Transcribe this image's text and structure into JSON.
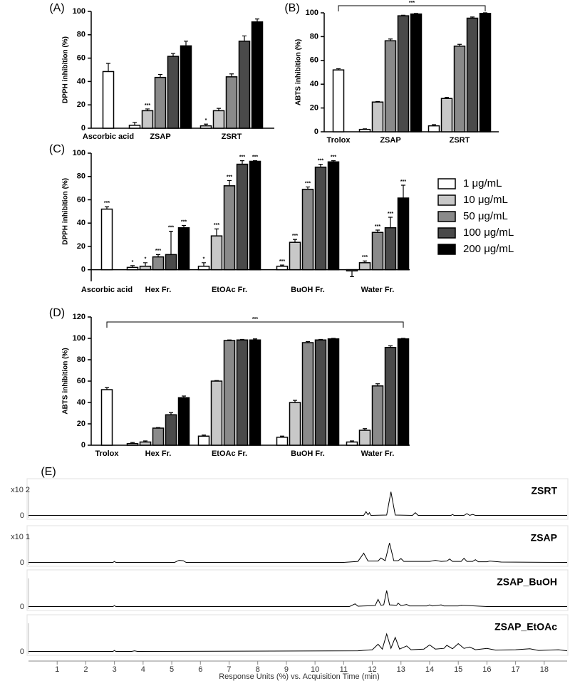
{
  "chart_data": [
    {
      "type": "bar",
      "title": "(A)",
      "y_label": "DPPH inhibition (%)",
      "categories": [
        "Ascorbic acid",
        "ZSAP",
        "ZSRT"
      ],
      "ylim": [
        0,
        100
      ],
      "yticks": [
        0,
        20,
        40,
        60,
        80,
        100
      ],
      "series": [
        {
          "color": "#ffffff",
          "values": [
            48.5,
            2.5,
            2
          ],
          "errors": [
            7,
            2.5,
            1.5
          ],
          "stars": [
            null,
            null,
            "*"
          ]
        },
        {
          "color": "#c8c8c8",
          "values": [
            null,
            15,
            15
          ],
          "errors": [
            null,
            1.5,
            2
          ],
          "stars": [
            null,
            "***",
            null
          ]
        },
        {
          "color": "#8a8a8a",
          "values": [
            null,
            43.5,
            44
          ],
          "errors": [
            null,
            2.5,
            2.5
          ]
        },
        {
          "color": "#4a4a4a",
          "values": [
            null,
            61.5,
            74.5
          ],
          "errors": [
            null,
            2.5,
            4.5
          ]
        },
        {
          "color": "#000000",
          "values": [
            null,
            70.5,
            91
          ],
          "errors": [
            null,
            4,
            2.5
          ]
        }
      ]
    },
    {
      "type": "bar",
      "title": "(B)",
      "y_label": "ABTS inhibition (%)",
      "categories": [
        "Trolox",
        "ZSAP",
        "ZSRT"
      ],
      "ylim": [
        0,
        100
      ],
      "yticks": [
        0,
        20,
        40,
        60,
        80,
        100
      ],
      "bracket": "***",
      "series": [
        {
          "color": "#ffffff",
          "values": [
            52,
            2,
            5
          ],
          "errors": [
            1,
            0.5,
            1
          ]
        },
        {
          "color": "#c8c8c8",
          "values": [
            null,
            25,
            28
          ],
          "errors": [
            null,
            0.5,
            1
          ]
        },
        {
          "color": "#8a8a8a",
          "values": [
            null,
            76.5,
            72
          ],
          "errors": [
            null,
            1.5,
            1.5
          ]
        },
        {
          "color": "#4a4a4a",
          "values": [
            null,
            97.5,
            95.5
          ],
          "errors": [
            null,
            0.5,
            1
          ]
        },
        {
          "color": "#000000",
          "values": [
            null,
            99,
            99.5
          ],
          "errors": [
            null,
            0.5,
            0.5
          ]
        }
      ]
    },
    {
      "type": "bar",
      "title": "(C)",
      "y_label": "DPPH inhibition (%)",
      "categories": [
        "Ascorbic acid",
        "Hex Fr.",
        "EtOAc Fr.",
        "BuOH Fr.",
        "Water Fr."
      ],
      "ylim": [
        -10,
        100
      ],
      "yticks": [
        0,
        20,
        40,
        60,
        80,
        100
      ],
      "legend": true,
      "series": [
        {
          "name": "1 μg/mL",
          "color": "#ffffff",
          "values": [
            52,
            2,
            3,
            3,
            -1
          ],
          "errors": [
            2,
            1.5,
            3,
            1,
            5
          ],
          "stars": [
            "***",
            "*",
            "*",
            "***",
            null
          ]
        },
        {
          "name": "10 μg/mL",
          "color": "#c8c8c8",
          "values": [
            null,
            3,
            29,
            23.5,
            6
          ],
          "errors": [
            null,
            3,
            6,
            2.5,
            1.5
          ],
          "stars": [
            null,
            "*",
            "***",
            "***",
            "***"
          ]
        },
        {
          "name": "50 μg/mL",
          "color": "#8a8a8a",
          "values": [
            null,
            11,
            72,
            69,
            32
          ],
          "errors": [
            null,
            2,
            4.5,
            2,
            2
          ],
          "stars": [
            null,
            "***",
            "***",
            "***",
            "***"
          ]
        },
        {
          "name": "100 μg/mL",
          "color": "#4a4a4a",
          "values": [
            null,
            13,
            90.5,
            88,
            36
          ],
          "errors": [
            null,
            20,
            3,
            2.5,
            9
          ],
          "stars": [
            null,
            "***",
            "***",
            "***",
            "***"
          ]
        },
        {
          "name": "200 μg/mL",
          "color": "#000000",
          "values": [
            null,
            36,
            93,
            92.5,
            61.5
          ],
          "errors": [
            null,
            2,
            0.5,
            1,
            11
          ],
          "stars": [
            null,
            "***",
            "***",
            "***",
            "***"
          ]
        }
      ]
    },
    {
      "type": "bar",
      "title": "(D)",
      "y_label": "ABTS inhibition (%)",
      "categories": [
        "Trolox",
        "Hex Fr.",
        "EtOAc Fr.",
        "BuOH Fr.",
        "Water Fr."
      ],
      "ylim": [
        0,
        120
      ],
      "yticks": [
        0,
        20,
        40,
        60,
        80,
        100,
        120
      ],
      "bracket": "***",
      "series": [
        {
          "color": "#ffffff",
          "values": [
            52,
            1.5,
            8.5,
            7.5,
            3
          ],
          "errors": [
            2,
            1,
            1,
            1,
            1
          ]
        },
        {
          "color": "#c8c8c8",
          "values": [
            null,
            3,
            60,
            40,
            14
          ],
          "errors": [
            null,
            1,
            0.5,
            2,
            1.5
          ]
        },
        {
          "color": "#8a8a8a",
          "values": [
            null,
            16,
            98,
            96,
            55.5
          ],
          "errors": [
            null,
            0.5,
            0.5,
            1,
            2
          ]
        },
        {
          "color": "#4a4a4a",
          "values": [
            null,
            28.5,
            98.5,
            98.5,
            91.5
          ],
          "errors": [
            null,
            2,
            0.5,
            0.5,
            1.5
          ]
        },
        {
          "color": "#000000",
          "values": [
            null,
            44.5,
            98.5,
            99.5,
            99.5
          ],
          "errors": [
            null,
            1.5,
            1,
            0.5,
            0.5
          ]
        }
      ]
    },
    {
      "type": "chromatogram",
      "title": "(E)",
      "x_label": "Response Units (%) vs. Acquisition Time (min)",
      "xlim": [
        0,
        18.8
      ],
      "xticks": [
        1,
        2,
        3,
        4,
        5,
        6,
        7,
        8,
        9,
        10,
        11,
        12,
        13,
        14,
        15,
        16,
        17,
        18
      ],
      "ylim": [
        0,
        100
      ],
      "yticks": [
        0
      ],
      "series": [
        {
          "name": "ZSRT",
          "scale_label": "x10 2",
          "color": "#000000",
          "x": [
            0,
            11.7,
            11.78,
            11.85,
            11.9,
            11.95,
            12.5,
            12.65,
            12.8,
            13.4,
            13.5,
            13.6,
            14.75,
            14.8,
            14.85,
            15.2,
            15.3,
            15.4,
            15.5,
            15.6,
            18.8
          ],
          "values": [
            1,
            1,
            12,
            3,
            9,
            1,
            2,
            70,
            2,
            1,
            9,
            1,
            1,
            4,
            1,
            1,
            6,
            1,
            4,
            1,
            1
          ]
        },
        {
          "name": "ZSAP",
          "scale_label": "x10 1",
          "color": "#000000",
          "x": [
            0,
            2.95,
            3.0,
            3.05,
            5.1,
            5.25,
            5.4,
            5.5,
            11.0,
            11.5,
            11.7,
            11.85,
            12.2,
            12.3,
            12.45,
            12.6,
            12.75,
            12.9,
            13.0,
            13.1,
            14.0,
            14.2,
            14.4,
            14.6,
            14.7,
            14.8,
            15.1,
            15.2,
            15.3,
            15.5,
            15.6,
            15.7,
            16.0,
            16.1,
            16.5,
            18.8
          ],
          "values": [
            1,
            1,
            4,
            1,
            1,
            7,
            6,
            1,
            1,
            4,
            28,
            5,
            5,
            14,
            6,
            58,
            6,
            6,
            12,
            4,
            4,
            7,
            4,
            5,
            11,
            4,
            4,
            13,
            4,
            4,
            9,
            3,
            3,
            5,
            2,
            1
          ]
        },
        {
          "name": "ZSAP_BuOH",
          "color": "#000000",
          "x": [
            0,
            2.95,
            3.0,
            3.05,
            11.2,
            11.4,
            11.5,
            12.1,
            12.2,
            12.3,
            12.4,
            12.5,
            12.6,
            12.85,
            12.9,
            13.0,
            13.2,
            13.3,
            13.9,
            14.0,
            14.1,
            14.4,
            14.5,
            15.0,
            15.1,
            16.0,
            18.8
          ],
          "values": [
            1,
            1,
            4,
            1,
            1,
            9,
            2,
            4,
            22,
            5,
            6,
            48,
            6,
            5,
            11,
            4,
            7,
            3,
            3,
            6,
            3,
            6,
            3,
            3,
            5,
            1,
            1
          ]
        },
        {
          "name": "ZSAP_EtOAc",
          "color": "#000000",
          "x": [
            0,
            2.95,
            3.0,
            3.05,
            3.6,
            3.7,
            3.8,
            11.5,
            12.0,
            12.2,
            12.35,
            12.5,
            12.65,
            12.8,
            12.95,
            13.2,
            13.35,
            13.8,
            14.0,
            14.2,
            14.5,
            14.6,
            14.8,
            15.0,
            15.2,
            15.4,
            15.6,
            16.0,
            16.3,
            17.0,
            17.5,
            17.8,
            18.5,
            18.8
          ],
          "values": [
            1,
            1,
            4,
            1,
            1,
            3,
            1,
            3,
            6,
            22,
            8,
            52,
            10,
            42,
            8,
            17,
            6,
            8,
            20,
            8,
            10,
            19,
            9,
            24,
            10,
            14,
            6,
            10,
            5,
            6,
            9,
            4,
            6,
            3
          ]
        }
      ]
    }
  ]
}
